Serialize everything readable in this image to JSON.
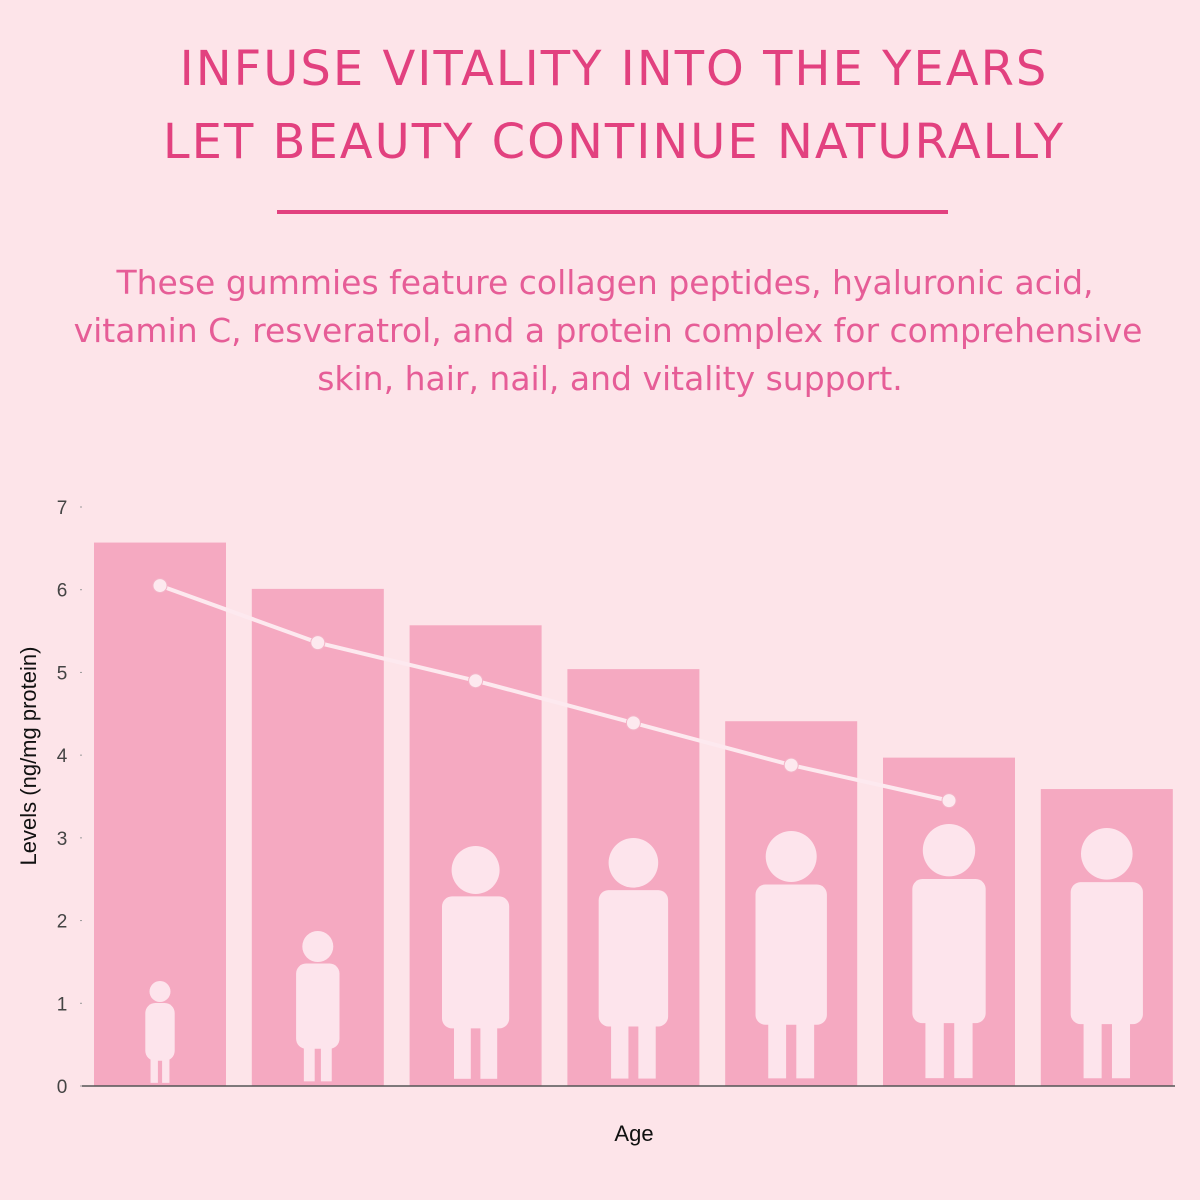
{
  "chart_data": {
    "type": "bar",
    "title": [
      "INFUSE VITALITY INTO THE YEARS",
      "LET BEAUTY CONTINUE NATURALLY"
    ],
    "subtitle": [
      "These gummies feature collagen peptides, hyaluronic acid,",
      "vitamin C, resveratrol, and a protein complex for comprehensive",
      "skin, hair, nail, and vitality support."
    ],
    "x_label": "Age",
    "y_label": "Levels (ng/mg protein)",
    "categories": [
      null,
      null,
      null,
      null,
      null,
      null,
      null
    ],
    "series": [
      {
        "type": "bar",
        "color": "#f5a9c1",
        "values": [
          6.57,
          6.01,
          5.57,
          5.04,
          4.41,
          3.97,
          3.59
        ]
      },
      {
        "type": "line",
        "color": "#fde9ef",
        "values": [
          6.05,
          5.36,
          4.9,
          4.39,
          3.88,
          3.45,
          null
        ]
      }
    ],
    "ylim": [
      0,
      7
    ],
    "yticks": [
      0,
      1,
      2,
      3,
      4,
      5,
      6,
      7
    ],
    "grid": false
  }
}
